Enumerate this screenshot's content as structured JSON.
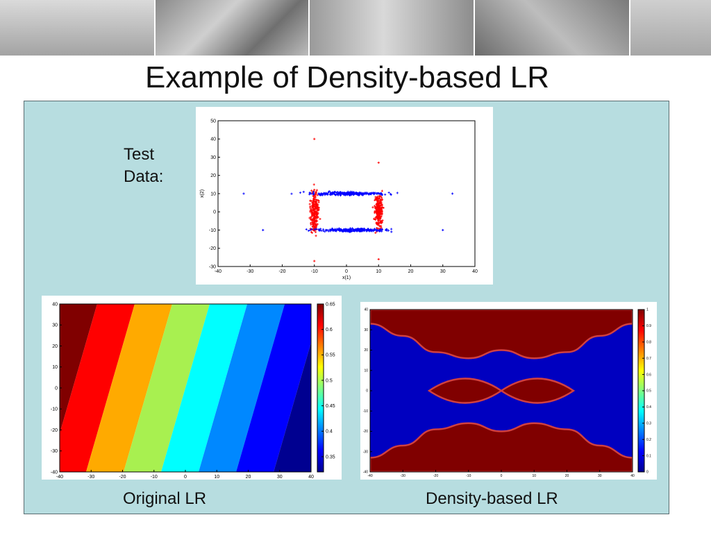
{
  "slide": {
    "title": "Example of Density-based LR",
    "test_label_line1": "Test",
    "test_label_line2": "Data:",
    "caption_left": "Original LR",
    "caption_right": "Density-based LR"
  },
  "chart_data": [
    {
      "type": "scatter",
      "title": "",
      "xlabel": "x(1)",
      "ylabel": "x(2)",
      "xlim": [
        -40,
        40
      ],
      "ylim": [
        -30,
        50
      ],
      "x_ticks": [
        -40,
        -30,
        -20,
        -10,
        0,
        10,
        20,
        30,
        40
      ],
      "y_ticks": [
        -30,
        -20,
        -10,
        0,
        10,
        20,
        30,
        40,
        50
      ],
      "grid": false,
      "series": [
        {
          "color": "#ff0000",
          "clusters": [
            {
              "x_center": -10,
              "y_center": 0,
              "x_spread": 1.5,
              "y_range": [
                -27,
                40
              ]
            },
            {
              "x_center": 10,
              "y_center": 0,
              "x_spread": 1.5,
              "y_range": [
                -26,
                27
              ]
            }
          ]
        },
        {
          "color": "#0000ff",
          "clusters": [
            {
              "y_center": 10,
              "y_spread": 1,
              "x_range": [
                -32,
                33
              ]
            },
            {
              "y_center": -10,
              "y_spread": 1,
              "x_range": [
                -26,
                30
              ]
            }
          ]
        }
      ]
    },
    {
      "type": "heatmap",
      "title": "",
      "xlim": [
        -40,
        40
      ],
      "ylim": [
        -40,
        40
      ],
      "x_ticks": [
        -40,
        -30,
        -20,
        -10,
        0,
        10,
        20,
        30,
        40
      ],
      "y_ticks": [
        -40,
        -30,
        -20,
        -10,
        0,
        10,
        20,
        30,
        40
      ],
      "colorbar_range": [
        0.32,
        0.65
      ],
      "colorbar_ticks": [
        0.35,
        0.4,
        0.45,
        0.5,
        0.55,
        0.6,
        0.65
      ],
      "bands": [
        {
          "color": "#800000"
        },
        {
          "color": "#ff0000"
        },
        {
          "color": "#ffaa00"
        },
        {
          "color": "#a8f050"
        },
        {
          "color": "#00ffff"
        },
        {
          "color": "#0088ff"
        },
        {
          "color": "#0000ff"
        },
        {
          "color": "#000090"
        }
      ]
    },
    {
      "type": "heatmap",
      "title": "",
      "xlim": [
        -40,
        40
      ],
      "ylim": [
        -40,
        40
      ],
      "x_ticks": [
        -40,
        -30,
        -20,
        -10,
        0,
        10,
        20,
        30,
        40
      ],
      "y_ticks": [
        -40,
        -30,
        -20,
        -10,
        0,
        10,
        20,
        30,
        40
      ],
      "colorbar_range": [
        0,
        1
      ],
      "colorbar_ticks": [
        0,
        0.1,
        0.2,
        0.3,
        0.4,
        0.5,
        0.6,
        0.7,
        0.8,
        0.9,
        1
      ],
      "regions": {
        "top_boundary_x": [
          -40,
          -30,
          -20,
          -10,
          0,
          10,
          20,
          30,
          40
        ],
        "top_boundary_y": [
          33,
          27,
          19,
          16,
          20,
          16,
          19,
          27,
          33
        ],
        "bottom_boundary_x": [
          -40,
          -30,
          -20,
          -10,
          0,
          10,
          20,
          30,
          40
        ],
        "bottom_boundary_y": [
          -33,
          -27,
          -19,
          -16,
          -20,
          -16,
          -19,
          -27,
          -33
        ],
        "center_lobes": [
          {
            "x_range": [
              -22,
              0
            ],
            "half_height": 6
          },
          {
            "x_range": [
              0,
              22
            ],
            "half_height": 6
          }
        ],
        "inside_color": "#800000",
        "outside_color": "#0000c0"
      }
    }
  ]
}
